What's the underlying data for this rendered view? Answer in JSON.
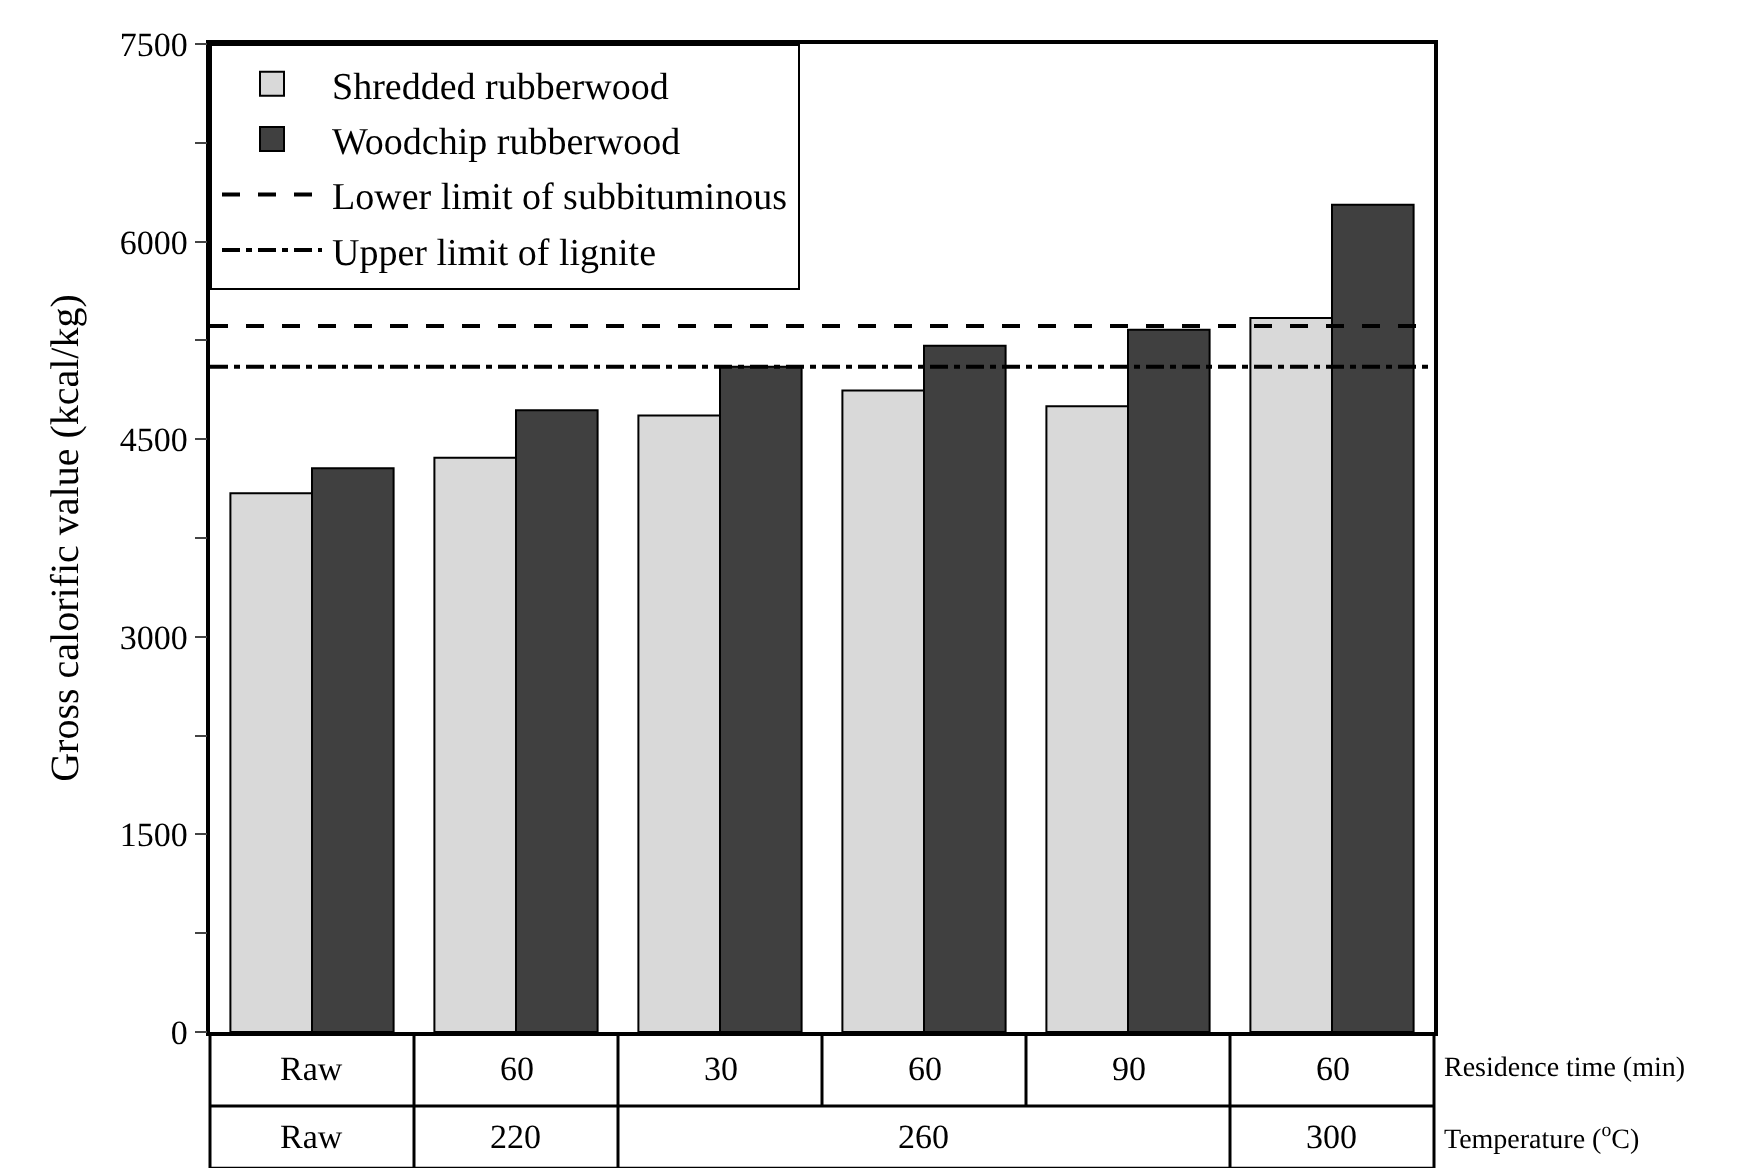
{
  "chart_data": {
    "type": "bar",
    "ylabel": "Gross calorific value (kcal/kg)",
    "xlabel": "Residence time (min)",
    "categories": [
      "Raw",
      "60",
      "30",
      "60",
      "90",
      "60"
    ],
    "series": [
      {
        "name": "Shredded rubberwood",
        "color": "#d9d9d9",
        "values": [
          4090,
          4360,
          4680,
          4870,
          4750,
          5420
        ]
      },
      {
        "name": "Woodchip rubberwood",
        "color": "#404040",
        "values": [
          4280,
          4720,
          5050,
          5210,
          5330,
          6280
        ]
      }
    ],
    "ylim": [
      0,
      7500
    ],
    "yticks": [
      0,
      {
        "value": 750,
        "label": null
      },
      1500,
      {
        "value": 2250,
        "label": null
      },
      3000,
      {
        "value": 3750,
        "label": null
      },
      4500,
      {
        "value": 5250,
        "label": null
      },
      6000,
      {
        "value": 6750,
        "label": null
      },
      7500
    ],
    "annotations": [
      "Raw",
      "220",
      "260",
      "300",
      "Temperature ($^{o}$C)"
    ],
    "ref_lines": [
      {
        "axis": "y",
        "value": 5360,
        "label": "Lower limit of subbituminous",
        "color": "#000000",
        "line_style": "dashed"
      },
      {
        "axis": "y",
        "value": 5050,
        "label": "Upper limit of lignite",
        "color": "#000000",
        "line_style": "dashdot"
      }
    ],
    "legend": "top left"
  }
}
